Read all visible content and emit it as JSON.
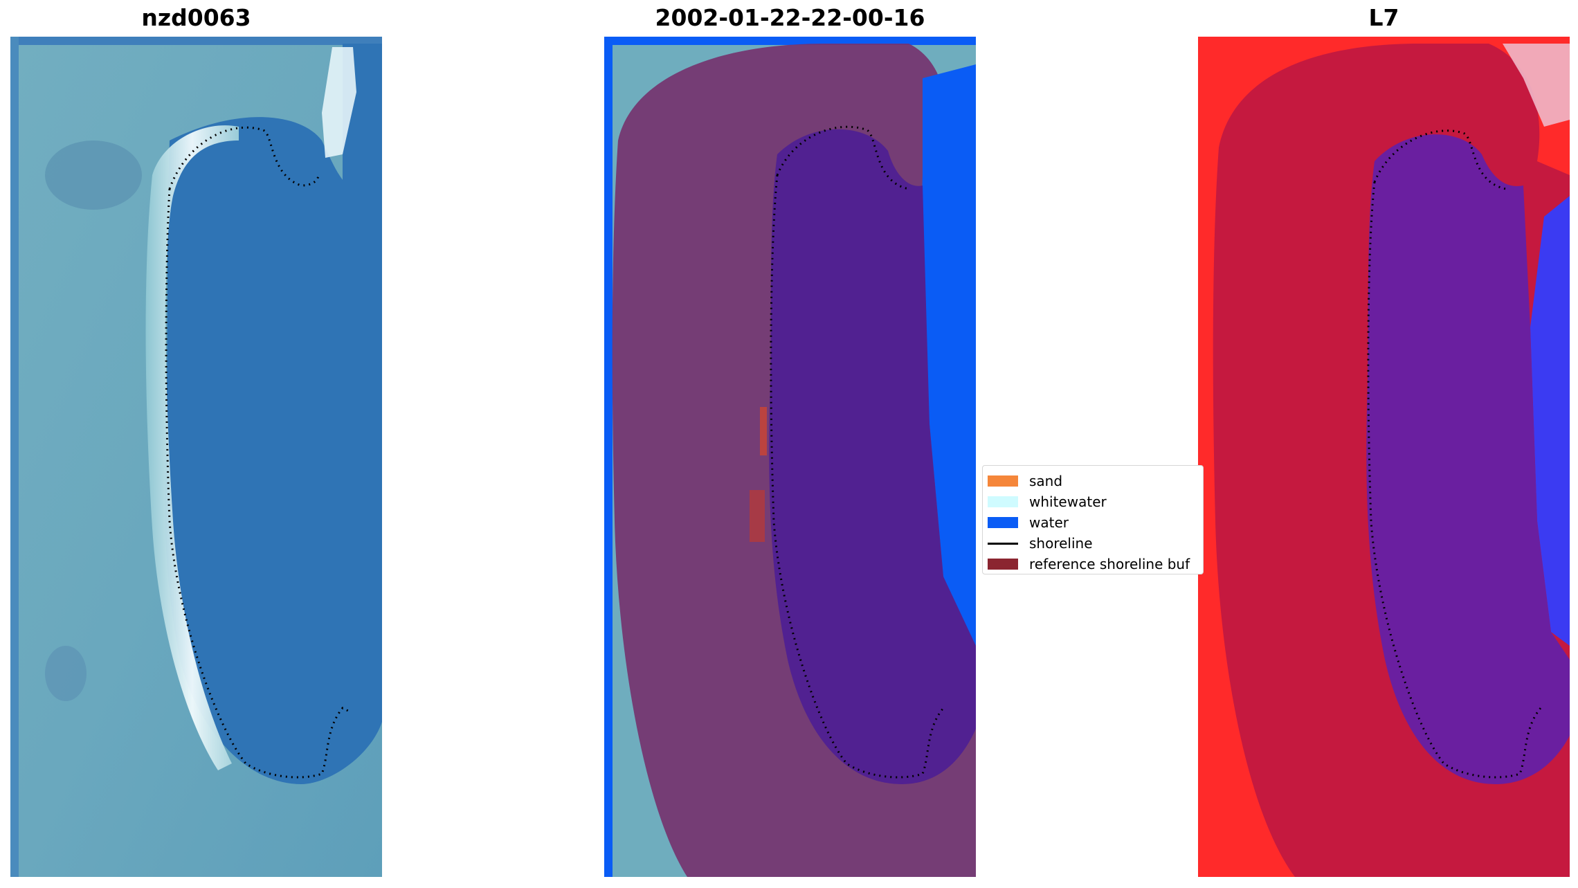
{
  "panels": [
    {
      "title": "nzd0063"
    },
    {
      "title": "2002-01-22-22-00-16"
    },
    {
      "title": "L7"
    }
  ],
  "legend": {
    "items": [
      {
        "label": "sand",
        "color": "#f5863a",
        "kind": "patch"
      },
      {
        "label": "whitewater",
        "color": "#cffbff",
        "kind": "patch"
      },
      {
        "label": "water",
        "color": "#0a5cf5",
        "kind": "patch"
      },
      {
        "label": "shoreline",
        "color": "#000000",
        "kind": "line"
      },
      {
        "label": "reference shoreline buf",
        "color": "#8b2530",
        "kind": "patch"
      }
    ]
  }
}
